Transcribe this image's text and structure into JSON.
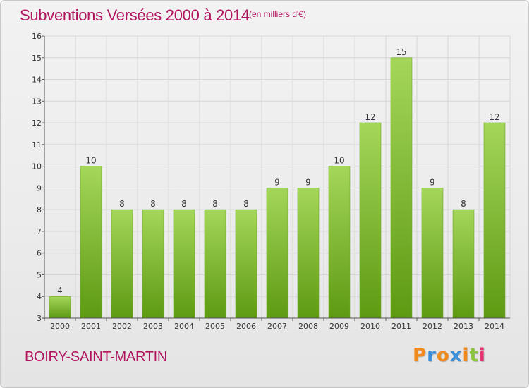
{
  "header": {
    "title": "Subventions Versées 2000 à 2014",
    "subtitle": "(en milliers d'€)"
  },
  "footer": {
    "commune": "BOIRY-SAINT-MARTIN",
    "brand": "Proxiti",
    "brand_colors": [
      "#f08a1c",
      "#3b8ed8",
      "#f08a1c",
      "#3b8ed8",
      "#f08a1c",
      "#8cc63f",
      "#e0336f"
    ]
  },
  "colors": {
    "title": "#b0155e",
    "bar_top": "#a4d65a",
    "bar_bottom": "#5e9a12",
    "gridline": "#d6d6d6"
  },
  "chart_data": {
    "type": "bar",
    "title": "Subventions Versées 2000 à 2014",
    "subtitle": "(en milliers d'€)",
    "xlabel": "",
    "ylabel": "",
    "categories": [
      "2000",
      "2001",
      "2002",
      "2003",
      "2004",
      "2005",
      "2006",
      "2007",
      "2008",
      "2009",
      "2010",
      "2011",
      "2012",
      "2013",
      "2014"
    ],
    "values": [
      4,
      10,
      8,
      8,
      8,
      8,
      8,
      9,
      9,
      10,
      12,
      15,
      9,
      8,
      12
    ],
    "ylim": [
      3,
      16
    ],
    "yticks": [
      3,
      4,
      5,
      6,
      7,
      8,
      9,
      10,
      11,
      12,
      13,
      14,
      15,
      16
    ],
    "grid": true,
    "legend": "none"
  }
}
